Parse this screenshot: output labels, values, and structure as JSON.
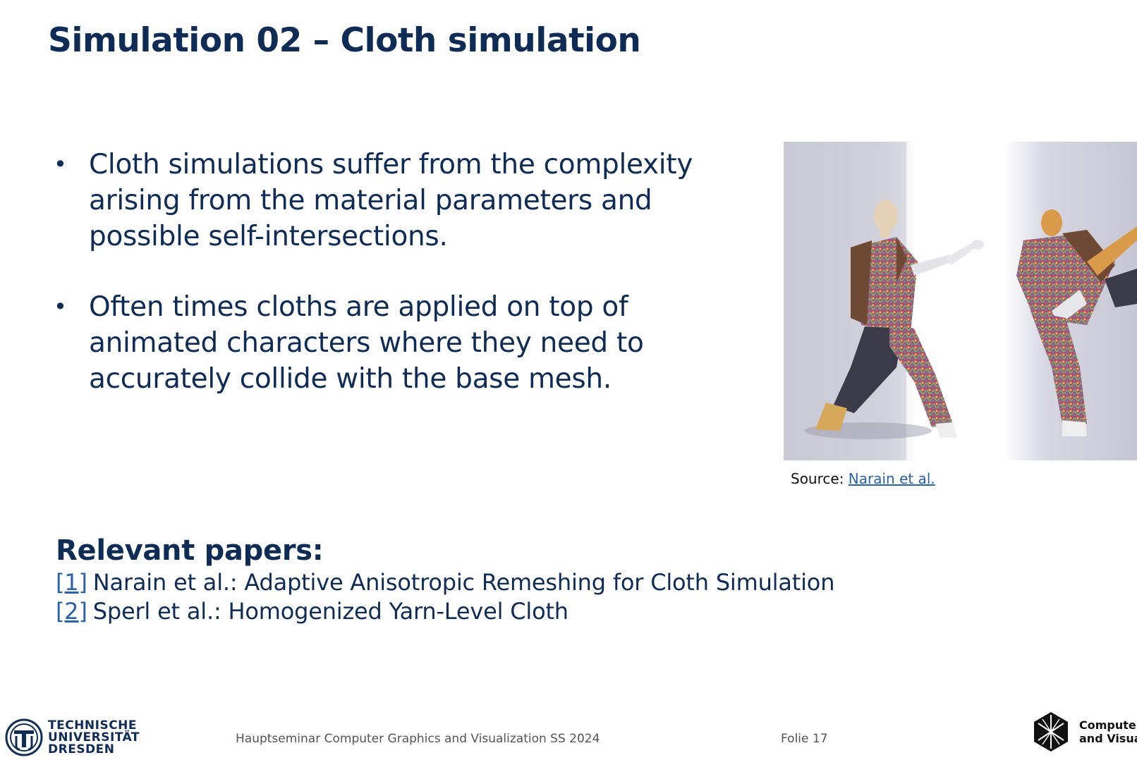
{
  "slide": {
    "title": "Simulation 02 – Cloth simulation",
    "bullets": [
      "Cloth simulations suffer from the complexity arising from the material parameters and possible self-intersections.",
      "Often times cloths are applied on top of animated characters where they need to accurately collide with the base mesh."
    ],
    "bullet_marker": "•",
    "figure": {
      "source_prefix": "Source:",
      "source_link": "Narain et al."
    },
    "papers": {
      "heading": "Relevant papers:",
      "items": [
        {
          "ref": "[1]",
          "text": "Narain et al.: Adaptive Anisotropic Remeshing for Cloth Simulation"
        },
        {
          "ref": "[2]",
          "text": "Sperl et al.: Homogenized Yarn-Level Cloth"
        }
      ]
    }
  },
  "footer": {
    "university_lines": [
      "TECHNISCHE",
      "UNIVERSITÄT",
      "DRESDEN"
    ],
    "course": "Hauptseminar Computer Graphics and Visualization SS 2024",
    "page": "Folie 17",
    "lab_lines": [
      "Computer",
      "and Visua"
    ]
  },
  "colors": {
    "title": "#0f2c57",
    "link": "#2a62a8",
    "footer_text": "#555555"
  }
}
